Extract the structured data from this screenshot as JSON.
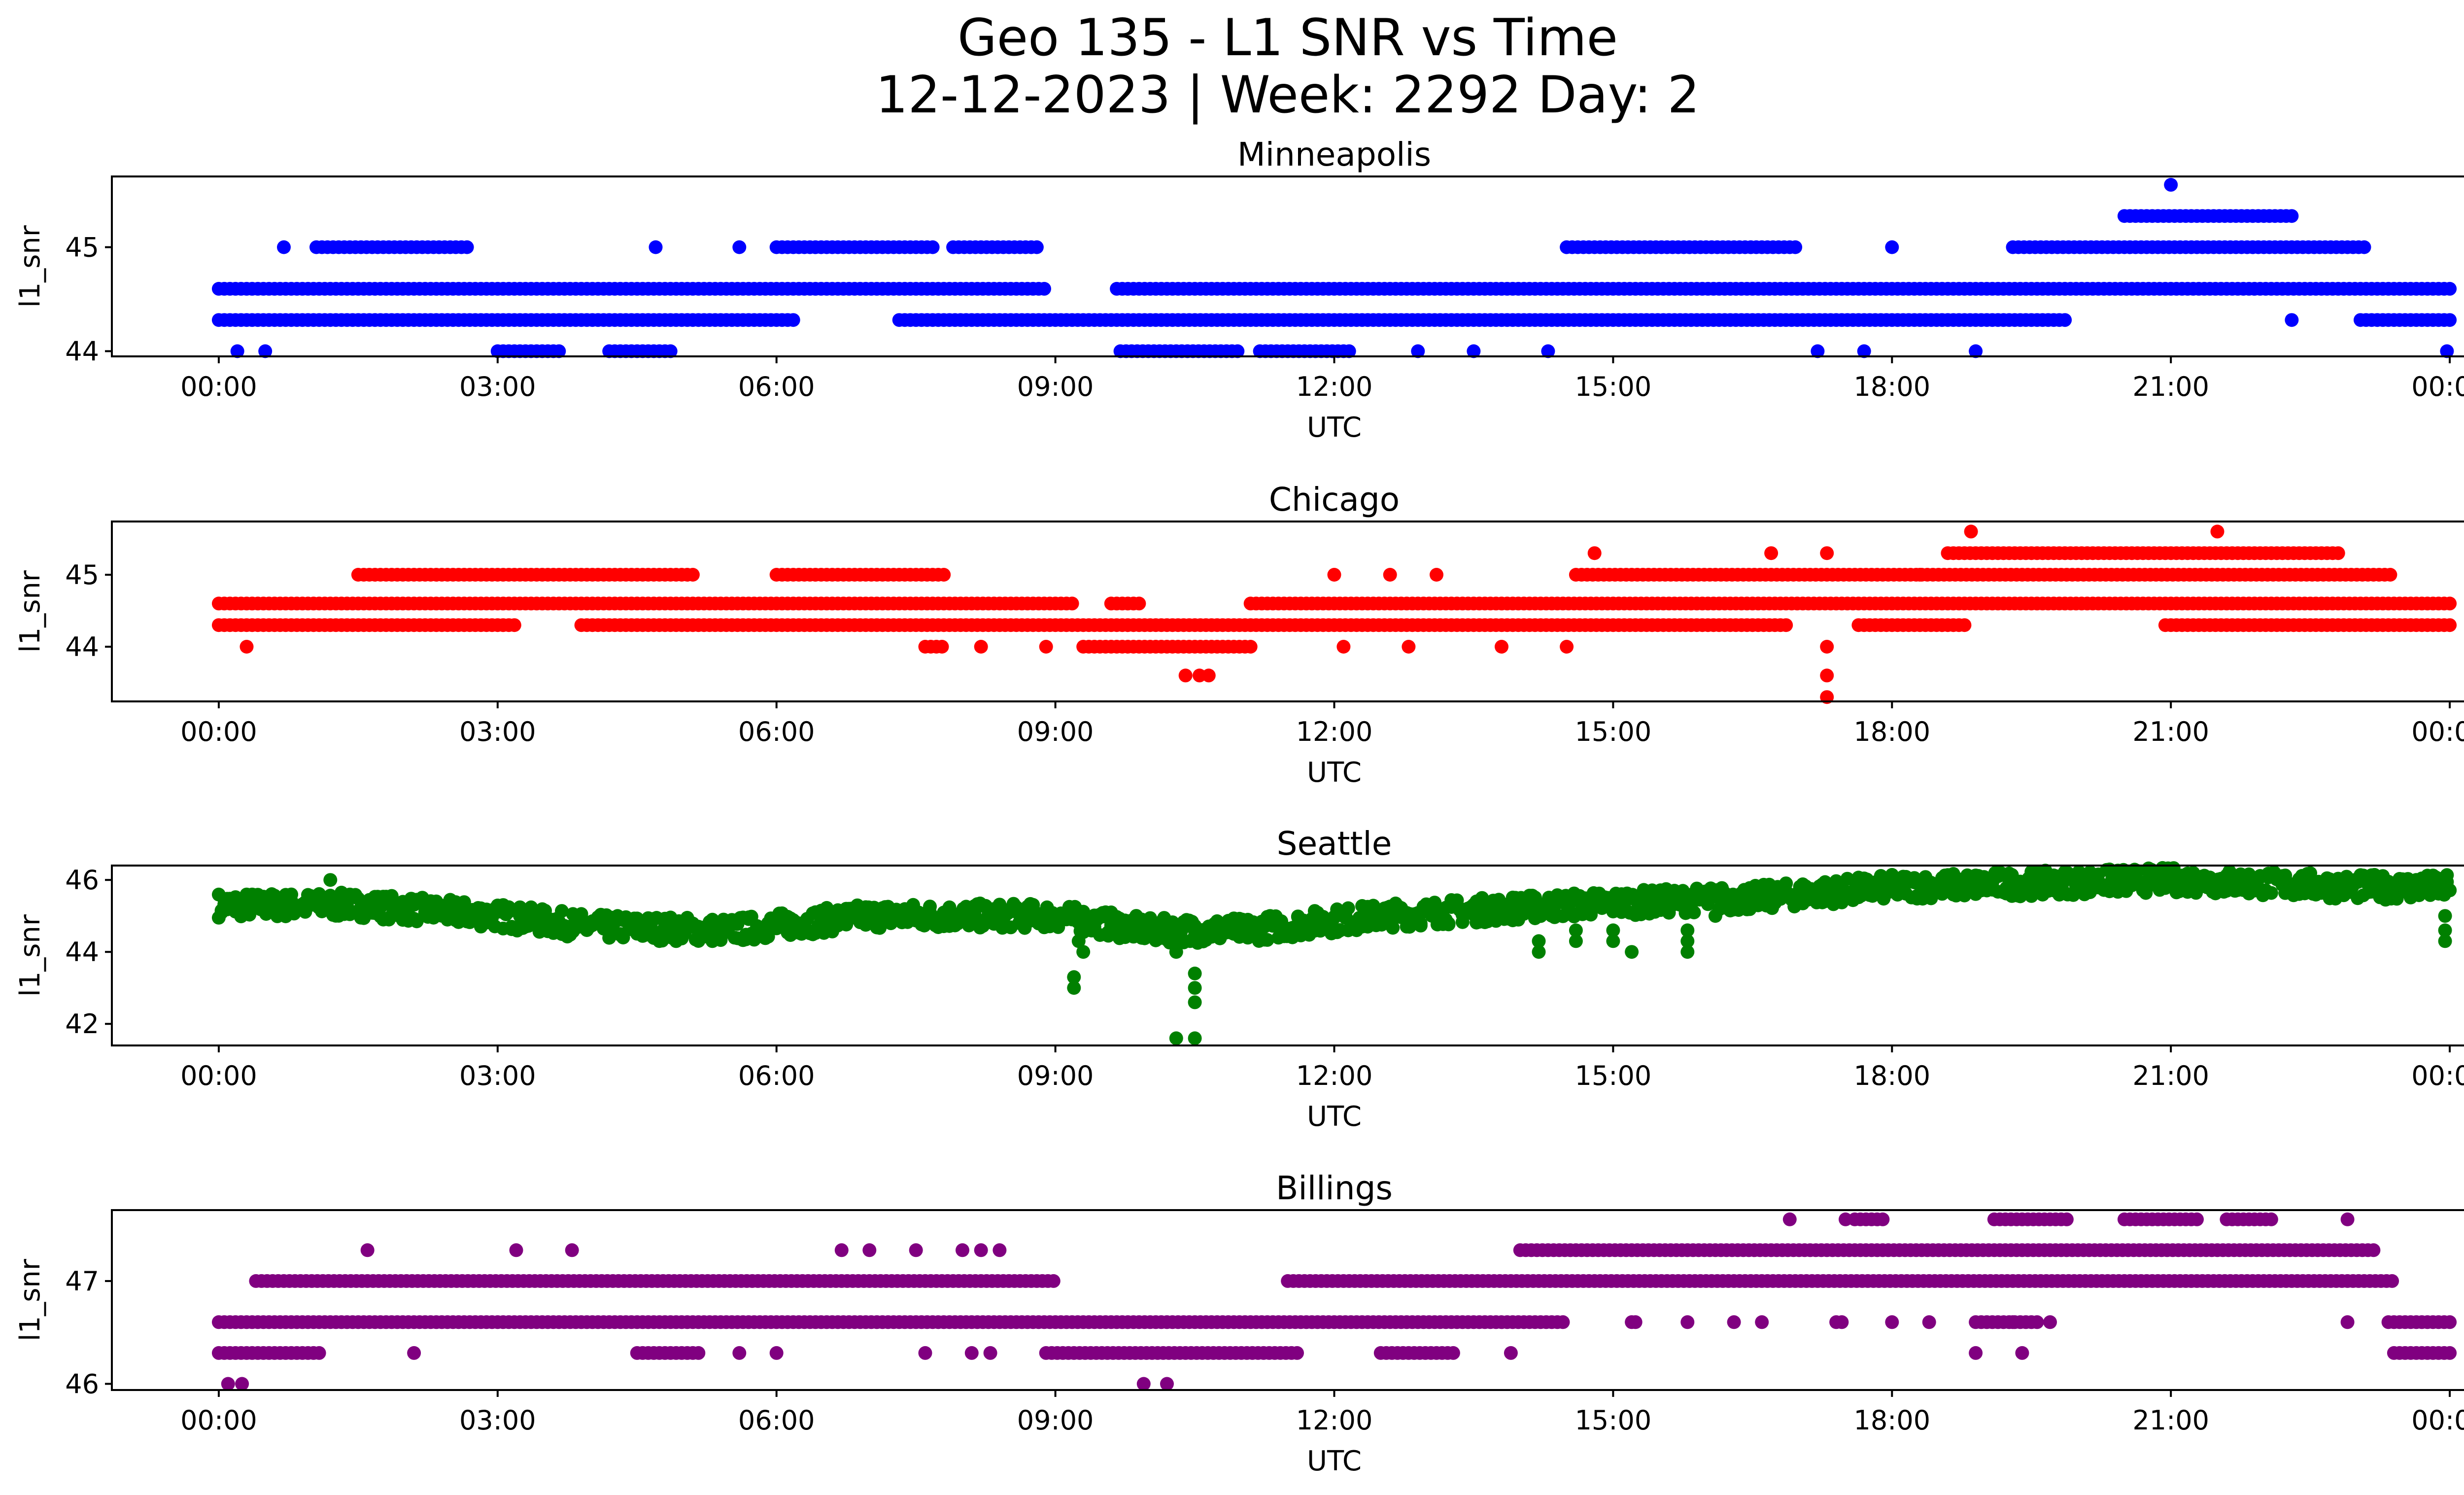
{
  "chart_data": {
    "type": "scatter",
    "title": "Geo 135 - L1 SNR vs Time",
    "subtitle": "12-12-2023 | Week: 2292 Day: 2",
    "x_tick_labels": [
      "00:00",
      "03:00",
      "06:00",
      "09:00",
      "12:00",
      "15:00",
      "18:00",
      "21:00",
      "00:00"
    ],
    "xlim_hours": [
      -1.15,
      25.15
    ],
    "panels": [
      {
        "title": "Minneapolis",
        "color": "#0000ff",
        "xlabel": "UTC",
        "ylabel": "l1_snr",
        "ylim": [
          43.95,
          45.68
        ],
        "yticks": [
          44,
          45
        ],
        "segments": [
          {
            "y": 44.6,
            "x0": 0.0,
            "x1": 24.0,
            "gaps": [
              [
                8.9,
                9.6
              ]
            ]
          },
          {
            "y": 44.3,
            "x0": 0.0,
            "x1": 24.0,
            "gaps": [
              [
                6.2,
                7.3
              ],
              [
                19.9,
                23.0
              ]
            ]
          },
          {
            "y": 45.0,
            "x0": 1.05,
            "x1": 2.7
          },
          {
            "y": 45.0,
            "x0": 6.0,
            "x1": 7.7
          },
          {
            "y": 45.0,
            "x0": 7.9,
            "x1": 8.8
          },
          {
            "y": 45.0,
            "x0": 14.5,
            "x1": 17.0
          },
          {
            "y": 45.0,
            "x0": 19.3,
            "x1": 23.1
          },
          {
            "y": 45.3,
            "x0": 20.5,
            "x1": 22.3
          },
          {
            "y": 44.0,
            "x0": 3.0,
            "x1": 3.7
          },
          {
            "y": 44.0,
            "x0": 4.2,
            "x1": 4.9
          },
          {
            "y": 44.0,
            "x0": 9.7,
            "x1": 11.0
          },
          {
            "y": 44.0,
            "x0": 11.2,
            "x1": 12.2
          }
        ],
        "points": [
          [
            0.2,
            44.0
          ],
          [
            0.5,
            44.0
          ],
          [
            0.7,
            45.0
          ],
          [
            4.7,
            45.0
          ],
          [
            5.6,
            45.0
          ],
          [
            17.2,
            44.0
          ],
          [
            17.7,
            44.0
          ],
          [
            18.0,
            45.0
          ],
          [
            18.9,
            44.0
          ],
          [
            21.0,
            45.6
          ],
          [
            22.3,
            44.3
          ],
          [
            23.97,
            44.0
          ],
          [
            12.9,
            44.0
          ],
          [
            13.5,
            44.0
          ],
          [
            14.3,
            44.0
          ]
        ]
      },
      {
        "title": "Chicago",
        "color": "#ff0000",
        "xlabel": "UTC",
        "ylabel": "l1_snr",
        "ylim": [
          43.24,
          45.74
        ],
        "yticks": [
          44,
          45
        ],
        "segments": [
          {
            "y": 44.6,
            "x0": 0.0,
            "x1": 24.0,
            "gaps": [
              [
                9.2,
                9.55
              ],
              [
                9.9,
                11.1
              ]
            ]
          },
          {
            "y": 44.3,
            "x0": 0.0,
            "x1": 24.0,
            "gaps": [
              [
                3.2,
                3.9
              ],
              [
                16.9,
                17.6
              ],
              [
                18.8,
                20.9
              ]
            ]
          },
          {
            "y": 45.0,
            "x0": 1.5,
            "x1": 5.1
          },
          {
            "y": 45.0,
            "x0": 6.0,
            "x1": 7.8
          },
          {
            "y": 45.0,
            "x0": 14.6,
            "x1": 23.4
          },
          {
            "y": 45.3,
            "x0": 18.6,
            "x1": 22.8
          },
          {
            "y": 44.0,
            "x0": 9.3,
            "x1": 11.1
          },
          {
            "y": 44.0,
            "x0": 7.6,
            "x1": 7.8
          }
        ],
        "points": [
          [
            0.3,
            44.0
          ],
          [
            10.4,
            43.6
          ],
          [
            10.55,
            43.6
          ],
          [
            10.65,
            43.6
          ],
          [
            17.3,
            43.3
          ],
          [
            17.3,
            43.6
          ],
          [
            17.3,
            44.0
          ],
          [
            18.85,
            45.6
          ],
          [
            21.5,
            45.6
          ],
          [
            8.2,
            44.0
          ],
          [
            8.9,
            44.0
          ],
          [
            12.1,
            44.0
          ],
          [
            12.8,
            44.0
          ],
          [
            13.8,
            44.0
          ],
          [
            14.5,
            44.0
          ],
          [
            12.0,
            45.0
          ],
          [
            12.6,
            45.0
          ],
          [
            13.1,
            45.0
          ],
          [
            16.7,
            45.3
          ],
          [
            17.3,
            45.3
          ],
          [
            18.3,
            45.0
          ],
          [
            14.8,
            45.3
          ]
        ]
      },
      {
        "title": "Seattle",
        "color": "#008000",
        "xlabel": "UTC",
        "ylabel": "l1_snr",
        "ylim": [
          41.4,
          46.4
        ],
        "yticks": [
          42,
          44,
          46
        ],
        "band": [
          [
            0.0,
            45.3
          ],
          [
            1.5,
            45.3
          ],
          [
            3.0,
            45.0
          ],
          [
            4.0,
            44.7
          ],
          [
            5.5,
            44.6
          ],
          [
            7.0,
            45.0
          ],
          [
            9.0,
            45.0
          ],
          [
            10.0,
            44.6
          ],
          [
            11.0,
            44.6
          ],
          [
            12.5,
            45.0
          ],
          [
            14.5,
            45.3
          ],
          [
            16.5,
            45.5
          ],
          [
            18.0,
            45.8
          ],
          [
            21.0,
            46.0
          ],
          [
            23.0,
            45.8
          ],
          [
            24.0,
            45.8
          ]
        ],
        "spread": 0.35,
        "points": [
          [
            1.2,
            46.0
          ],
          [
            9.2,
            43.3
          ],
          [
            9.2,
            43.0
          ],
          [
            9.3,
            44.0
          ],
          [
            9.25,
            44.3
          ],
          [
            10.3,
            41.6
          ],
          [
            10.5,
            41.6
          ],
          [
            10.5,
            42.6
          ],
          [
            10.5,
            43.0
          ],
          [
            10.5,
            43.4
          ],
          [
            10.3,
            44.0
          ],
          [
            10.45,
            44.3
          ],
          [
            14.2,
            44.0
          ],
          [
            14.2,
            44.3
          ],
          [
            14.6,
            44.6
          ],
          [
            14.6,
            44.3
          ],
          [
            15.0,
            44.6
          ],
          [
            15.0,
            44.3
          ],
          [
            15.2,
            44.0
          ],
          [
            15.8,
            44.6
          ],
          [
            15.8,
            44.3
          ],
          [
            15.8,
            44.0
          ],
          [
            16.1,
            45.0
          ],
          [
            23.95,
            44.3
          ],
          [
            23.95,
            44.6
          ],
          [
            23.95,
            45.0
          ]
        ]
      },
      {
        "title": "Billings",
        "color": "#800080",
        "xlabel": "UTC",
        "ylabel": "l1_snr",
        "ylim": [
          45.94,
          47.69
        ],
        "yticks": [
          46,
          47
        ],
        "segments": [
          {
            "y": 46.6,
            "x0": 0.0,
            "x1": 24.0,
            "gaps": [
              [
                14.5,
                15.2
              ],
              [
                15.3,
                17.4
              ],
              [
                17.5,
                18.9
              ],
              [
                19.6,
                23.3
              ]
            ]
          },
          {
            "y": 46.3,
            "x0": 0.0,
            "x1": 1.1
          },
          {
            "y": 46.3,
            "x0": 4.5,
            "x1": 5.2
          },
          {
            "y": 46.3,
            "x0": 8.9,
            "x1": 11.6
          },
          {
            "y": 46.3,
            "x0": 12.5,
            "x1": 13.3
          },
          {
            "y": 46.3,
            "x0": 23.4,
            "x1": 24.0
          },
          {
            "y": 47.0,
            "x0": 0.4,
            "x1": 9.0
          },
          {
            "y": 47.0,
            "x0": 11.5,
            "x1": 23.4
          },
          {
            "y": 47.3,
            "x0": 14.0,
            "x1": 23.2
          },
          {
            "y": 47.6,
            "x0": 17.6,
            "x1": 17.9
          },
          {
            "y": 47.6,
            "x0": 19.1,
            "x1": 19.9
          },
          {
            "y": 47.6,
            "x0": 20.5,
            "x1": 21.3
          },
          {
            "y": 47.6,
            "x0": 21.6,
            "x1": 22.1
          }
        ],
        "points": [
          [
            0.1,
            46.0
          ],
          [
            0.25,
            46.0
          ],
          [
            9.95,
            46.0
          ],
          [
            10.2,
            46.0
          ],
          [
            1.6,
            47.3
          ],
          [
            2.1,
            46.3
          ],
          [
            3.2,
            47.3
          ],
          [
            3.8,
            47.3
          ],
          [
            6.7,
            47.3
          ],
          [
            7.0,
            47.3
          ],
          [
            7.5,
            47.3
          ],
          [
            8.0,
            47.3
          ],
          [
            8.2,
            47.3
          ],
          [
            8.4,
            47.3
          ],
          [
            7.6,
            46.3
          ],
          [
            8.1,
            46.3
          ],
          [
            8.3,
            46.3
          ],
          [
            5.6,
            46.3
          ],
          [
            6.0,
            46.3
          ],
          [
            13.9,
            46.3
          ],
          [
            15.2,
            46.6
          ],
          [
            15.8,
            46.6
          ],
          [
            16.3,
            46.6
          ],
          [
            16.6,
            46.6
          ],
          [
            16.9,
            47.6
          ],
          [
            17.5,
            47.6
          ],
          [
            18.9,
            46.3
          ],
          [
            19.4,
            46.3
          ],
          [
            18.0,
            46.6
          ],
          [
            18.4,
            46.6
          ],
          [
            18.9,
            46.6
          ],
          [
            19.3,
            46.6
          ],
          [
            19.7,
            46.6
          ],
          [
            22.9,
            46.6
          ],
          [
            22.9,
            47.6
          ]
        ]
      }
    ]
  }
}
